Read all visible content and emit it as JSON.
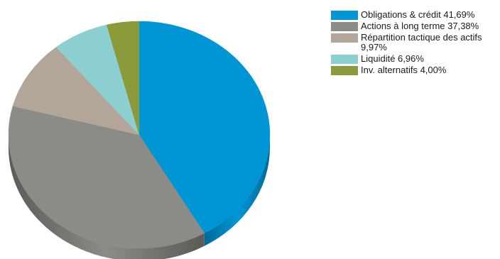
{
  "chart_data": {
    "type": "pie",
    "title": "",
    "slices": [
      {
        "label": "Obligations & crédit 41,69%",
        "value": 41.69,
        "color": "#0096d6",
        "dark": "#006a98"
      },
      {
        "label": "Actions à long terme 37,38%",
        "value": 37.38,
        "color": "#8c8c87",
        "dark": "#5a5a56"
      },
      {
        "label": "Répartition tactique des actifs 9,97%",
        "value": 9.97,
        "color": "#b3a598",
        "dark": "#7a6f65"
      },
      {
        "label": "Liquidité 6,96%",
        "value": 6.96,
        "color": "#8ccfd0",
        "dark": "#5a9c9d"
      },
      {
        "label": "Inv. alternatifs 4,00%",
        "value": 4.0,
        "color": "#8c9a3c",
        "dark": "#5e6828"
      }
    ],
    "legend_position": "right",
    "style": "3d"
  }
}
